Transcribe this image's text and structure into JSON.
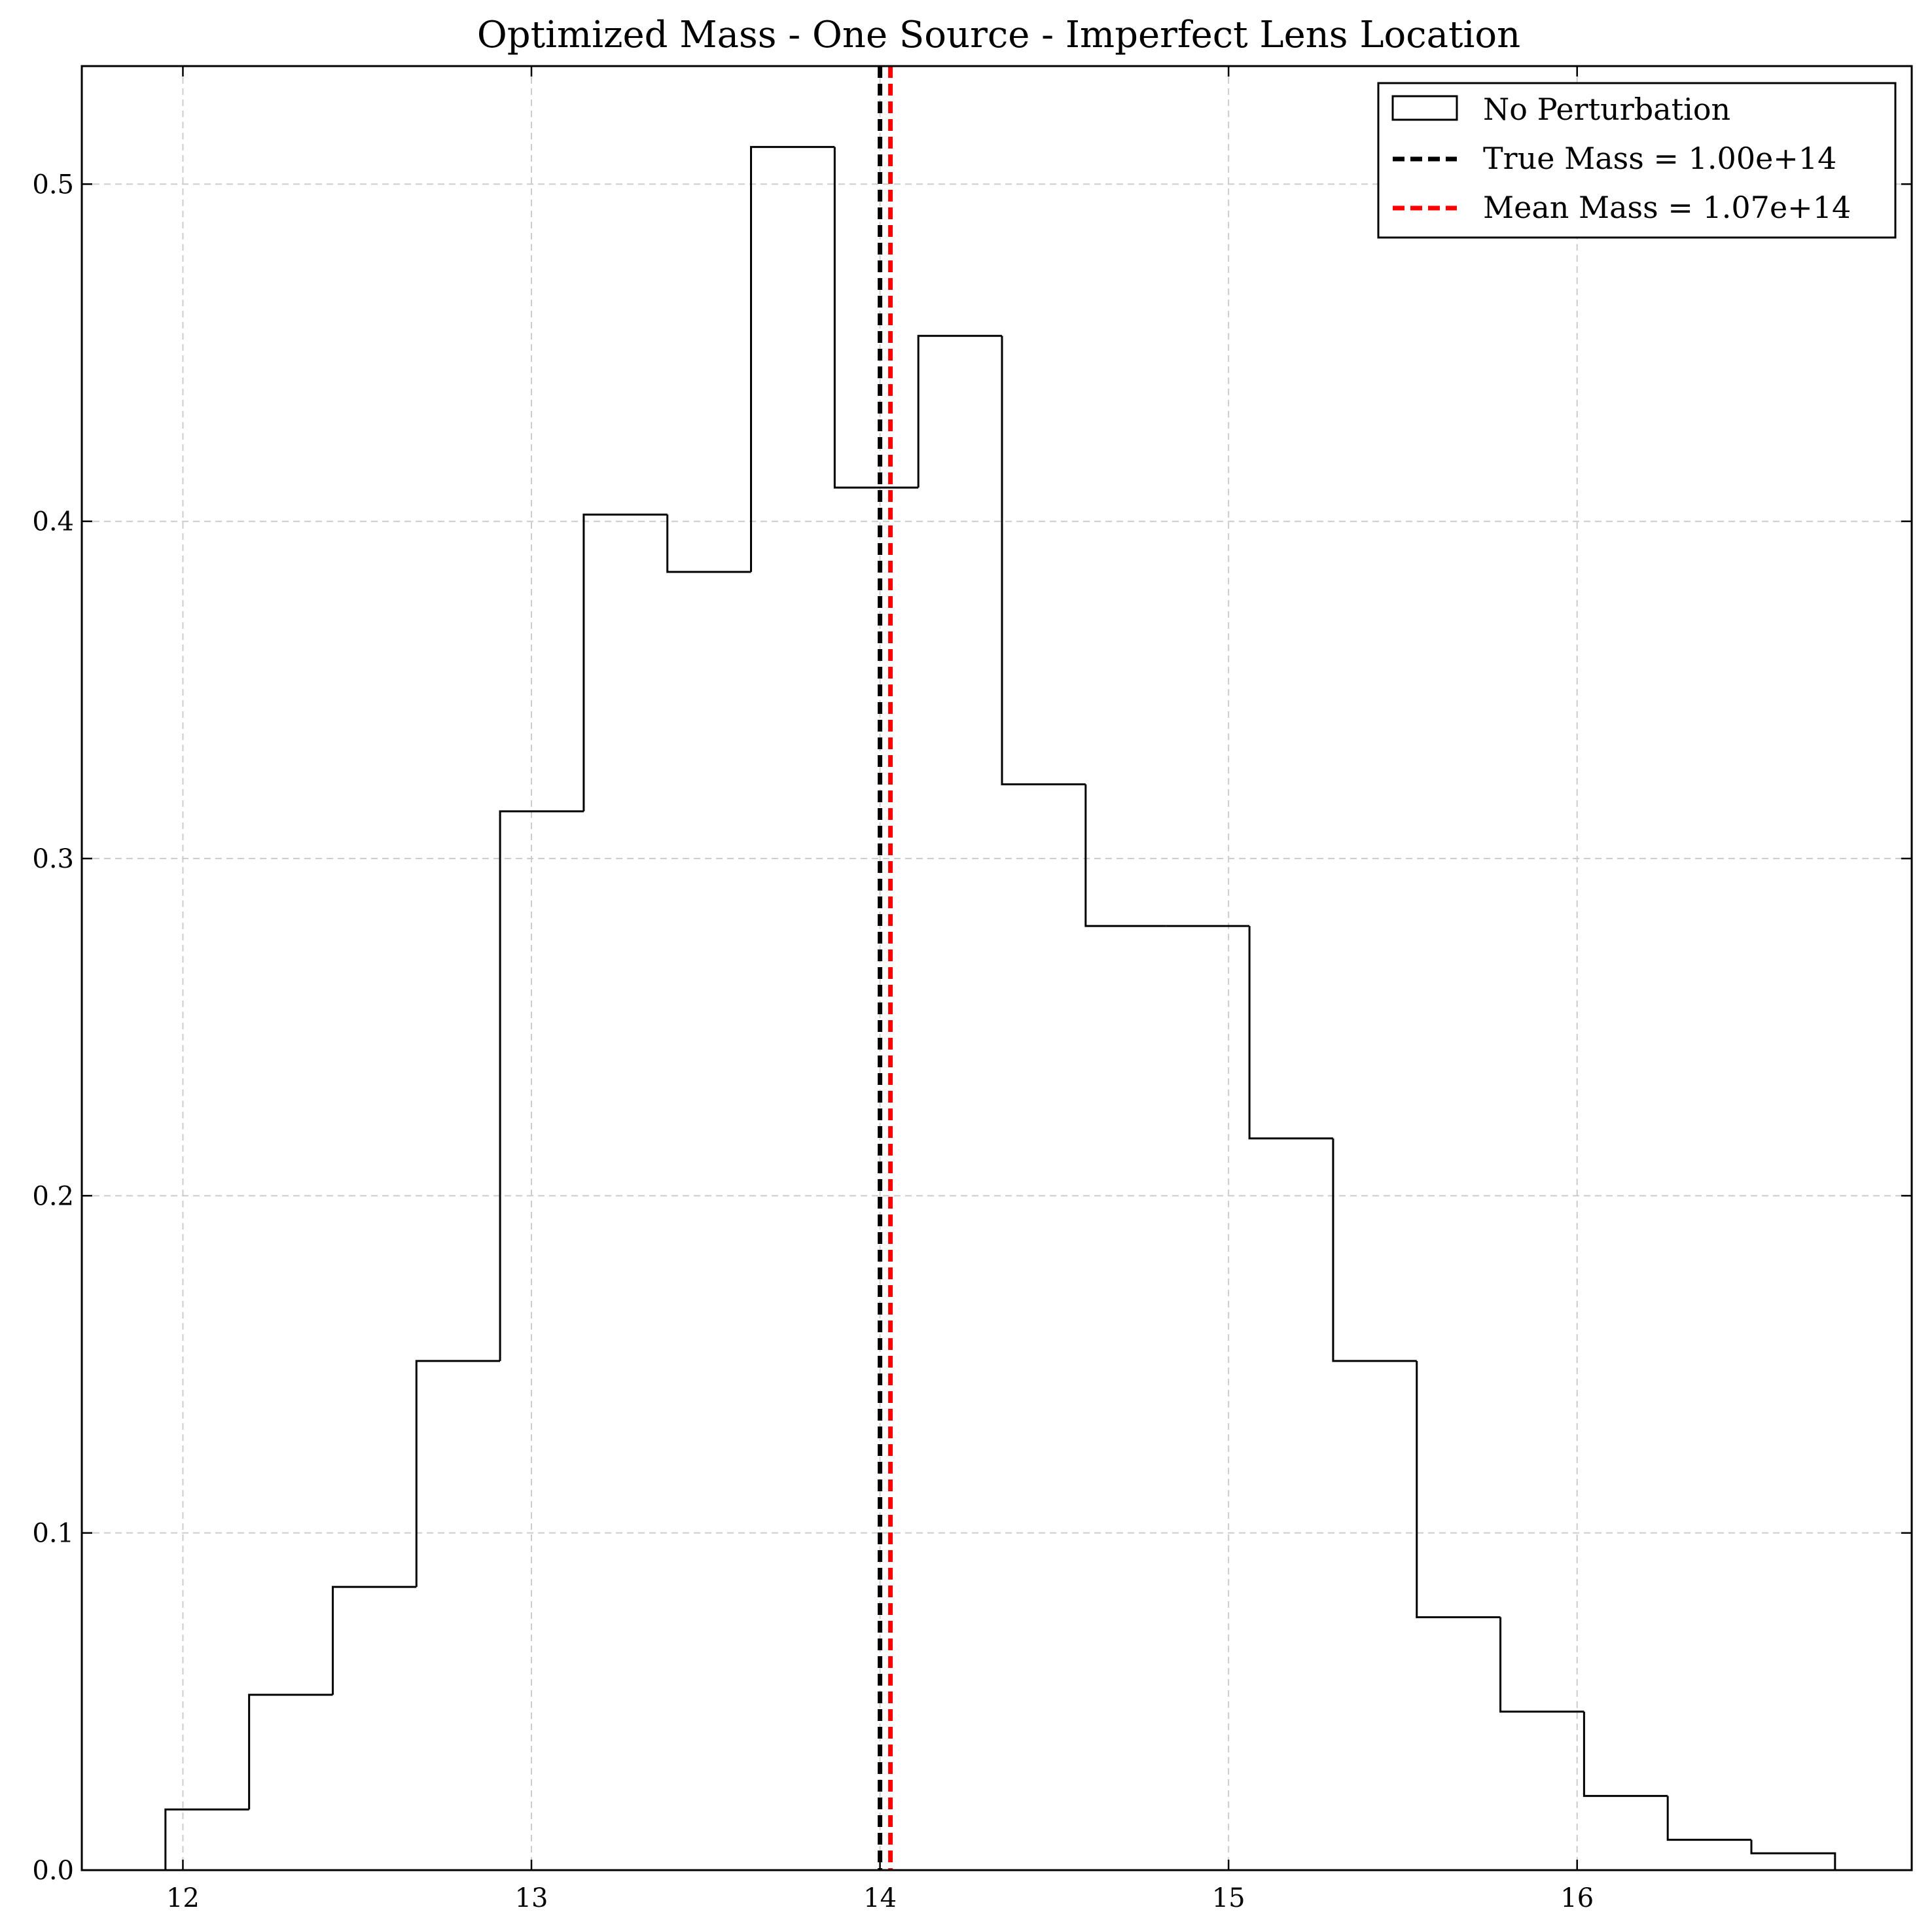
{
  "chart_data": {
    "type": "histogram",
    "title": "Optimized Mass - One Source - Imperfect Lens Location",
    "xlabel": "",
    "ylabel": "",
    "xlim": [
      11.71,
      16.96
    ],
    "ylim": [
      0.0,
      0.535
    ],
    "xticks": [
      12,
      13,
      14,
      15,
      16
    ],
    "yticks": [
      0.0,
      0.1,
      0.2,
      0.3,
      0.4,
      0.5
    ],
    "grid": true,
    "legend_position": "top-right",
    "bin_edges": [
      11.95,
      12.19,
      12.43,
      12.67,
      12.91,
      13.15,
      13.39,
      13.63,
      13.87,
      14.11,
      14.35,
      14.59,
      14.82,
      15.06,
      15.3,
      15.54,
      15.78,
      16.02,
      16.26,
      16.5,
      16.74
    ],
    "values": [
      0.018,
      0.052,
      0.084,
      0.151,
      0.314,
      0.402,
      0.385,
      0.511,
      0.41,
      0.455,
      0.322,
      0.28,
      0.28,
      0.217,
      0.151,
      0.075,
      0.047,
      0.022,
      0.009,
      0.005
    ],
    "series": [
      {
        "name": "No Perturbation",
        "kind": "step-histogram",
        "color": "#000000"
      }
    ],
    "reference_lines": [
      {
        "name": "True Mass = 1.00e+14",
        "x": 14.0,
        "color": "#000000",
        "style": "dashed"
      },
      {
        "name": "Mean Mass = 1.07e+14",
        "x": 14.03,
        "color": "#ff0000",
        "style": "dashed"
      }
    ]
  }
}
